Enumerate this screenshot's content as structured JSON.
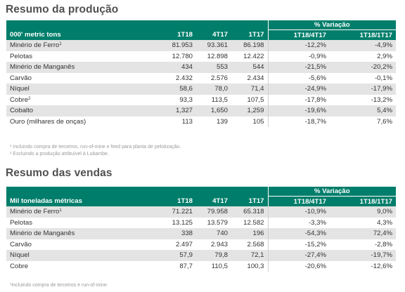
{
  "production": {
    "title": "Resumo da produção",
    "variation_header": "% Variação",
    "columns": [
      "000' metric tons",
      "1T18",
      "4T17",
      "1T17",
      "1T18/4T17",
      "1T18/1T17"
    ],
    "rows": [
      {
        "label": "Minério de Ferro",
        "sup": "1",
        "c1": "81.953",
        "c2": "93.361",
        "c3": "86.198",
        "v1": "-12,2%",
        "v2": "-4,9%"
      },
      {
        "label": "Pelotas",
        "sup": "",
        "c1": "12.780",
        "c2": "12.898",
        "c3": "12.422",
        "v1": "-0,9%",
        "v2": "2,9%"
      },
      {
        "label": "Minério de Manganês",
        "sup": "",
        "c1": "434",
        "c2": "553",
        "c3": "544",
        "v1": "-21,5%",
        "v2": "-20,2%"
      },
      {
        "label": "Carvão",
        "sup": "",
        "c1": "2.432",
        "c2": "2.576",
        "c3": "2.434",
        "v1": "-5,6%",
        "v2": "-0,1%"
      },
      {
        "label": "Níquel",
        "sup": "",
        "c1": "58,6",
        "c2": "78,0",
        "c3": "71,4",
        "v1": "-24,9%",
        "v2": "-17,9%"
      },
      {
        "label": "Cobre",
        "sup": "2",
        "c1": "93,3",
        "c2": "113,5",
        "c3": "107,5",
        "v1": "-17,8%",
        "v2": "-13,2%"
      },
      {
        "label": "Cobalto",
        "sup": "",
        "c1": "1,327",
        "c2": "1,650",
        "c3": "1,259",
        "v1": "-19,6%",
        "v2": "5,4%"
      },
      {
        "label": "Ouro (milhares de onças)",
        "sup": "",
        "c1": "113",
        "c2": "139",
        "c3": "105",
        "v1": "-18,7%",
        "v2": "7,6%"
      }
    ],
    "notes": [
      "¹ Incluindo compra de terceiros, run-of-mine e feed para planta de pelotização.",
      "² Excluindo a produção atribuível à Lubambe."
    ]
  },
  "sales": {
    "title": "Resumo das vendas",
    "variation_header": "% Variação",
    "columns": [
      "Mil toneladas métricas",
      "1T18",
      "4T17",
      "1T17",
      "1T18/4T17",
      "1T18/1T17"
    ],
    "rows": [
      {
        "label": "Minério de Ferro",
        "sup": "1",
        "c1": "71.221",
        "c2": "79.958",
        "c3": "65.318",
        "v1": "-10,9%",
        "v2": "9,0%"
      },
      {
        "label": "Pelotas",
        "sup": "",
        "c1": "13.125",
        "c2": "13.579",
        "c3": "12.582",
        "v1": "-3,3%",
        "v2": "4,3%"
      },
      {
        "label": "Minério de Manganês",
        "sup": "",
        "c1": "338",
        "c2": "740",
        "c3": "196",
        "v1": "-54,3%",
        "v2": "72,4%"
      },
      {
        "label": "Carvão",
        "sup": "",
        "c1": "2.497",
        "c2": "2.943",
        "c3": "2.568",
        "v1": "-15,2%",
        "v2": "-2,8%"
      },
      {
        "label": "Níquel",
        "sup": "",
        "c1": "57,9",
        "c2": "79,8",
        "c3": "72,1",
        "v1": "-27,4%",
        "v2": "-19,7%"
      },
      {
        "label": "Cobre",
        "sup": "",
        "c1": "87,7",
        "c2": "110,5",
        "c3": "100,3",
        "v1": "-20,6%",
        "v2": "-12,6%"
      }
    ],
    "notes": [
      "¹Incluindo compra de terceiros e run-of-mine."
    ]
  },
  "colors": {
    "header_green": "#007e6b",
    "row_shade": "#e4e4e4",
    "title_gray": "#505050"
  }
}
